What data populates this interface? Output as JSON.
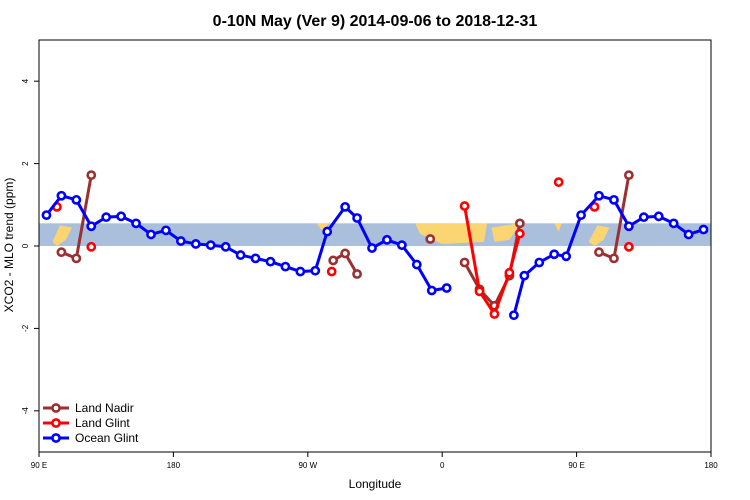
{
  "chart_data": {
    "type": "line",
    "title": "0-10N May (Ver 9)   2014-09-06 to 2018-12-31",
    "xlabel": "Longitude",
    "ylabel": "XCO2 - MLO trend (ppm)",
    "xlim": [
      0,
      450
    ],
    "ylim": [
      -5,
      5
    ],
    "x_ticks": [
      {
        "value": 0,
        "label": "90 E"
      },
      {
        "value": 90,
        "label": "180"
      },
      {
        "value": 180,
        "label": "90 W"
      },
      {
        "value": 270,
        "label": "0"
      },
      {
        "value": 360,
        "label": "90 E"
      },
      {
        "value": 450,
        "label": "180"
      }
    ],
    "y_ticks": [
      {
        "value": -4,
        "label": "-4"
      },
      {
        "value": -2,
        "label": "-2"
      },
      {
        "value": 0,
        "label": "0"
      },
      {
        "value": 2,
        "label": "2"
      },
      {
        "value": 4,
        "label": "4"
      }
    ],
    "band": {
      "ymin": 0,
      "ymax": 0.55,
      "ocean_color": "#a9bfdc",
      "land_color": "#fcd573"
    },
    "legend_position": "bottom-left",
    "series": [
      {
        "name": "Land Nadir",
        "color": "#9b3030",
        "points": [
          [
            15,
            -0.15
          ],
          [
            25,
            -0.3
          ],
          [
            35,
            1.72
          ],
          [
            null,
            null
          ],
          [
            197,
            -0.35
          ],
          [
            205,
            -0.18
          ],
          [
            213,
            -0.68
          ],
          [
            null,
            null
          ],
          [
            262,
            0.17
          ],
          [
            null,
            null
          ],
          [
            285,
            -0.4
          ],
          [
            295,
            -1.05
          ],
          [
            305,
            -1.45
          ],
          [
            315,
            -0.72
          ],
          [
            322,
            0.55
          ],
          [
            null,
            null
          ],
          [
            375,
            -0.15
          ],
          [
            385,
            -0.3
          ],
          [
            395,
            1.72
          ]
        ]
      },
      {
        "name": "Land Glint",
        "color": "#ff0000",
        "points": [
          [
            12,
            0.95
          ],
          [
            null,
            null
          ],
          [
            35,
            -0.02
          ],
          [
            null,
            null
          ],
          [
            196,
            -0.62
          ],
          [
            null,
            null
          ],
          [
            285,
            0.97
          ],
          [
            295,
            -1.1
          ],
          [
            305,
            -1.65
          ],
          [
            315,
            -0.65
          ],
          [
            322,
            0.3
          ],
          [
            null,
            null
          ],
          [
            348,
            1.55
          ],
          [
            null,
            null
          ],
          [
            372,
            0.95
          ],
          [
            null,
            null
          ],
          [
            395,
            -0.02
          ]
        ]
      },
      {
        "name": "Ocean Glint",
        "color": "#0000ff",
        "points": [
          [
            5,
            0.75
          ],
          [
            15,
            1.22
          ],
          [
            25,
            1.12
          ],
          [
            35,
            0.48
          ],
          [
            45,
            0.7
          ],
          [
            55,
            0.72
          ],
          [
            65,
            0.55
          ],
          [
            75,
            0.28
          ],
          [
            85,
            0.38
          ],
          [
            95,
            0.12
          ],
          [
            105,
            0.05
          ],
          [
            115,
            0.02
          ],
          [
            125,
            -0.02
          ],
          [
            135,
            -0.22
          ],
          [
            145,
            -0.3
          ],
          [
            155,
            -0.38
          ],
          [
            165,
            -0.5
          ],
          [
            175,
            -0.62
          ],
          [
            185,
            -0.6
          ],
          [
            193,
            0.35
          ],
          [
            205,
            0.95
          ],
          [
            213,
            0.68
          ],
          [
            223,
            -0.05
          ],
          [
            233,
            0.15
          ],
          [
            243,
            0.02
          ],
          [
            253,
            -0.45
          ],
          [
            263,
            -1.08
          ],
          [
            273,
            -1.02
          ],
          [
            null,
            null
          ],
          [
            318,
            -1.68
          ],
          [
            325,
            -0.72
          ],
          [
            335,
            -0.4
          ],
          [
            345,
            -0.2
          ],
          [
            353,
            -0.25
          ],
          [
            363,
            0.75
          ],
          [
            375,
            1.22
          ],
          [
            385,
            1.12
          ],
          [
            395,
            0.48
          ],
          [
            405,
            0.7
          ],
          [
            415,
            0.72
          ],
          [
            425,
            0.55
          ],
          [
            435,
            0.28
          ],
          [
            445,
            0.4
          ]
        ]
      }
    ]
  }
}
